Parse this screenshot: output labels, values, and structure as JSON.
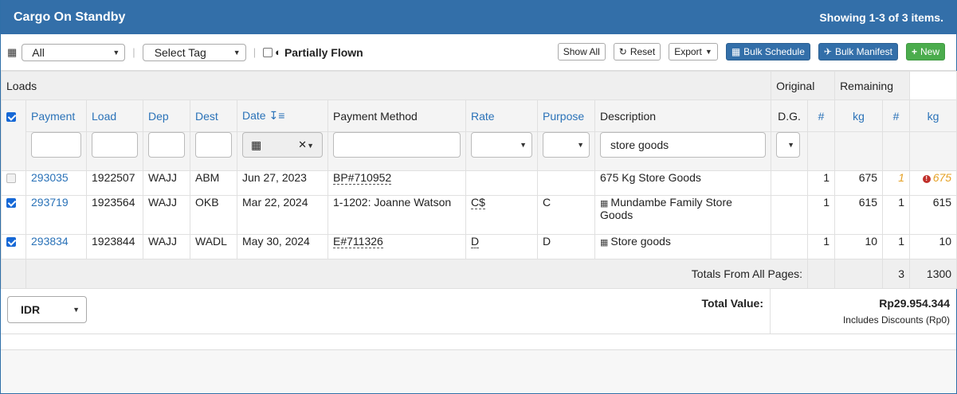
{
  "header": {
    "title": "Cargo On Standby",
    "summary": "Showing 1-3 of 3 items."
  },
  "toolbar": {
    "date_filter_value": "All",
    "tag_select_value": "Select Tag",
    "partially_flown_label": "Partially Flown",
    "show_all_label": "Show All",
    "reset_label": "Reset",
    "export_label": "Export",
    "bulk_schedule_label": "Bulk Schedule",
    "bulk_manifest_label": "Bulk Manifest",
    "new_label": "New"
  },
  "table": {
    "group_headers": {
      "loads": "Loads",
      "original": "Original",
      "remaining": "Remaining"
    },
    "columns": {
      "payment": "Payment",
      "load": "Load",
      "dep": "Dep",
      "dest": "Dest",
      "date": "Date",
      "payment_method": "Payment Method",
      "rate": "Rate",
      "purpose": "Purpose",
      "description": "Description",
      "dg": "D.G.",
      "orig_count": "#",
      "orig_kg": "kg",
      "rem_count": "#",
      "rem_kg": "kg"
    },
    "filters": {
      "description_value": "store goods"
    },
    "rows": [
      {
        "payment": "293035",
        "load": "1922507",
        "dep": "WAJJ",
        "dest": "ABM",
        "date": "Jun 27, 2023",
        "payment_method": "BP#710952",
        "rate": "",
        "purpose": "",
        "description": "675 Kg Store Goods",
        "dg": "",
        "orig_count": "1",
        "orig_kg": "675",
        "rem_count": "1",
        "rem_kg": "675",
        "checked": false
      },
      {
        "payment": "293719",
        "load": "1923564",
        "dep": "WAJJ",
        "dest": "OKB",
        "date": "Mar 22, 2024",
        "payment_method": "1-1202: Joanne Watson",
        "rate": "C$",
        "purpose": "C",
        "description": "Mundambe Family Store Goods",
        "dg": "",
        "orig_count": "1",
        "orig_kg": "615",
        "rem_count": "1",
        "rem_kg": "615",
        "checked": true
      },
      {
        "payment": "293834",
        "load": "1923844",
        "dep": "WAJJ",
        "dest": "WADL",
        "date": "May 30, 2024",
        "payment_method": "E#711326",
        "rate": "D",
        "purpose": "D",
        "description": "Store goods",
        "dg": "",
        "orig_count": "1",
        "orig_kg": "10",
        "rem_count": "1",
        "rem_kg": "10",
        "checked": true
      }
    ],
    "totals": {
      "label": "Totals From All Pages:",
      "count": "3",
      "kg": "1300"
    }
  },
  "footer": {
    "currency": "IDR",
    "total_value_label": "Total Value:",
    "total_value": "Rp29.954.344",
    "discount_note": "Includes Discounts (Rp0)"
  },
  "colors": {
    "header_blue": "#336fa9",
    "link_blue": "#2a72b8",
    "success_green": "#4bac4d",
    "warning_orange": "#e5a023",
    "danger_red": "#c0302b"
  }
}
